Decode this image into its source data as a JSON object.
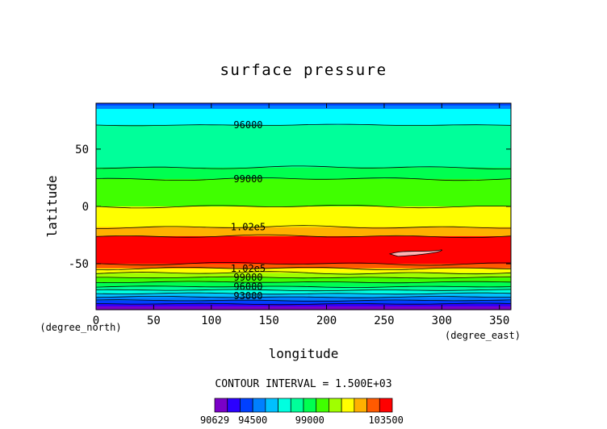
{
  "chart_data": {
    "type": "heatmap",
    "title": "surface pressure",
    "xlabel": "longitude",
    "ylabel": "latitude",
    "x_unit": "(degree_east)",
    "y_unit": "(degree_north)",
    "xlim": [
      0,
      360
    ],
    "ylim": [
      -90,
      90
    ],
    "x_ticks": [
      0,
      50,
      100,
      150,
      200,
      250,
      300,
      350
    ],
    "y_ticks": [
      -50,
      0,
      50
    ],
    "contour_interval_label": "CONTOUR INTERVAL = 1.500E+03",
    "colorbar": {
      "labels": [
        "90629",
        "94500",
        "99000",
        "103500"
      ],
      "colors": [
        "#7a00c8",
        "#2b00ff",
        "#0040ff",
        "#0080ff",
        "#00c0ff",
        "#00ffe0",
        "#00ff9a",
        "#00ff50",
        "#40ff00",
        "#a0ff00",
        "#ffff00",
        "#ffb000",
        "#ff5a00",
        "#ff0000"
      ]
    },
    "zonal_bands": [
      {
        "lat_from": 90,
        "lat_to": 88,
        "color": "#0040ff"
      },
      {
        "lat_from": 88,
        "lat_to": 85,
        "color": "#0080ff"
      },
      {
        "lat_from": 85,
        "lat_to": 71,
        "color": "#00ffff"
      },
      {
        "lat_from": 71,
        "lat_to": 34,
        "color": "#00ff9a"
      },
      {
        "lat_from": 34,
        "lat_to": 24,
        "color": "#00ff50"
      },
      {
        "lat_from": 24,
        "lat_to": 0,
        "color": "#40ff00"
      },
      {
        "lat_from": 0,
        "lat_to": -18,
        "color": "#ffff00"
      },
      {
        "lat_from": -18,
        "lat_to": -26,
        "color": "#ffb000"
      },
      {
        "lat_from": -26,
        "lat_to": -50,
        "color": "#ff0000"
      },
      {
        "lat_from": -50,
        "lat_to": -54,
        "color": "#ff5a00"
      },
      {
        "lat_from": -54,
        "lat_to": -58,
        "color": "#ffff00"
      },
      {
        "lat_from": -58,
        "lat_to": -62,
        "color": "#a0ff00"
      },
      {
        "lat_from": -62,
        "lat_to": -66,
        "color": "#40ff00"
      },
      {
        "lat_from": -66,
        "lat_to": -70,
        "color": "#00ff50"
      },
      {
        "lat_from": -70,
        "lat_to": -73,
        "color": "#00ff9a"
      },
      {
        "lat_from": -73,
        "lat_to": -76,
        "color": "#00ffe0"
      },
      {
        "lat_from": -76,
        "lat_to": -79,
        "color": "#00c0ff"
      },
      {
        "lat_from": -79,
        "lat_to": -82,
        "color": "#0080ff"
      },
      {
        "lat_from": -82,
        "lat_to": -85,
        "color": "#0040ff"
      },
      {
        "lat_from": -85,
        "lat_to": -87,
        "color": "#2b00ff"
      },
      {
        "lat_from": -87,
        "lat_to": -90,
        "color": "#7a00c8"
      }
    ],
    "contour_lines": [
      71,
      34,
      24,
      0,
      -18,
      -26,
      -50,
      -54,
      -58,
      -62,
      -66,
      -70,
      -73,
      -76,
      -79,
      -82,
      -85
    ],
    "contour_labels": [
      {
        "text": "96000",
        "lon": 132,
        "lat": 71
      },
      {
        "text": "99000",
        "lon": 132,
        "lat": 24
      },
      {
        "text": "1.02e5",
        "lon": 132,
        "lat": -18
      },
      {
        "text": "1.02e5",
        "lon": 132,
        "lat": -54
      },
      {
        "text": "99000",
        "lon": 132,
        "lat": -62
      },
      {
        "text": "96000",
        "lon": 132,
        "lat": -70
      },
      {
        "text": "93000",
        "lon": 132,
        "lat": -78
      }
    ],
    "highlight_region": {
      "lon_range": [
        255,
        300
      ],
      "lat_center": -40,
      "color": "#ffb4b4"
    }
  }
}
